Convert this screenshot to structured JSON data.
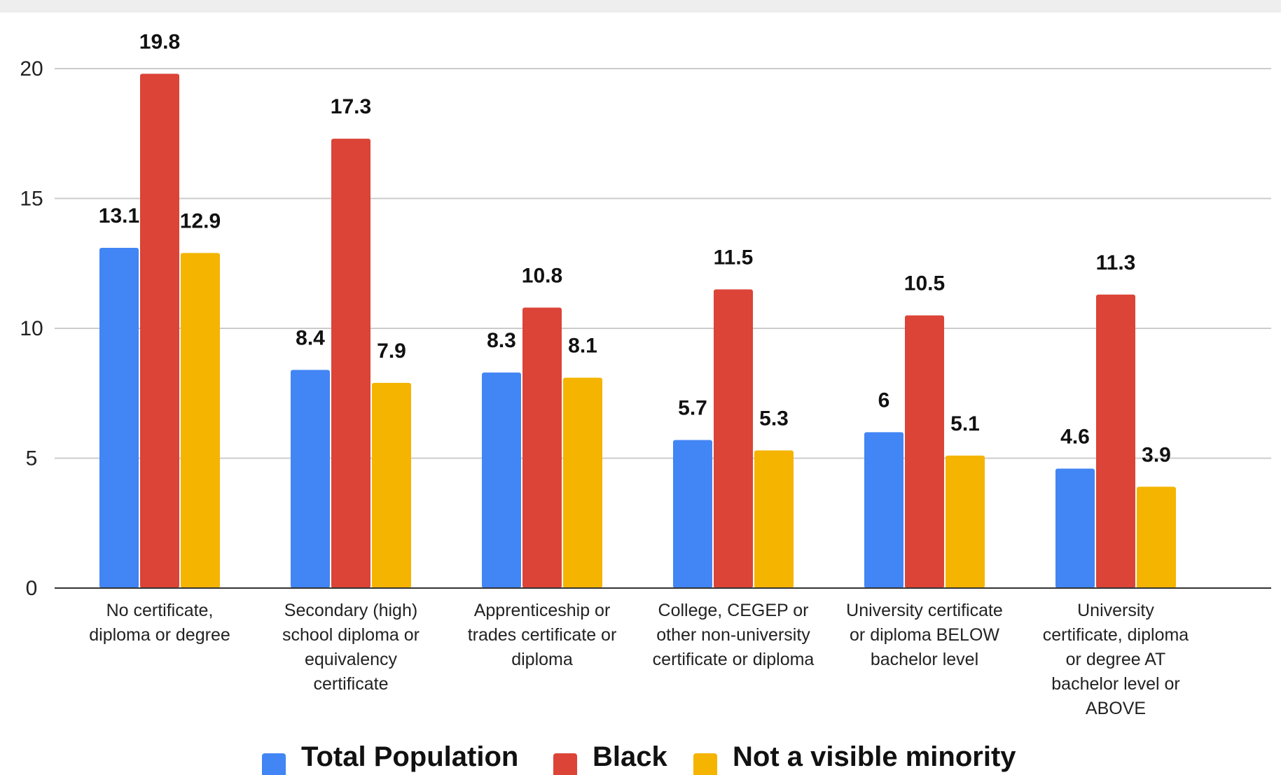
{
  "chart_data": {
    "type": "bar",
    "categories": [
      [
        "No certificate,",
        "diploma or degree"
      ],
      [
        "Secondary (high)",
        "school diploma or",
        "equivalency",
        "certificate"
      ],
      [
        "Apprenticeship or",
        "trades certificate or",
        "diploma"
      ],
      [
        "College, CEGEP or",
        "other non-university",
        "certificate or diploma"
      ],
      [
        "University certificate",
        "or diploma BELOW",
        "bachelor level"
      ],
      [
        "University",
        "certificate, diploma",
        "or degree AT",
        "bachelor level or",
        "ABOVE"
      ]
    ],
    "series": [
      {
        "name": "Total Population",
        "color": "#4285f4",
        "values": [
          13.1,
          8.4,
          8.3,
          5.7,
          6,
          4.6
        ],
        "labels": [
          "13.1",
          "8.4",
          "8.3",
          "5.7",
          "6",
          "4.6"
        ]
      },
      {
        "name": "Black",
        "color": "#db4437",
        "values": [
          19.8,
          17.3,
          10.8,
          11.5,
          10.5,
          11.3
        ],
        "labels": [
          "19.8",
          "17.3",
          "10.8",
          "11.5",
          "10.5",
          "11.3"
        ]
      },
      {
        "name": "Not a visible minority",
        "color": "#f4b400",
        "values": [
          12.9,
          7.9,
          8.1,
          5.3,
          5.1,
          3.9
        ],
        "labels": [
          "12.9",
          "7.9",
          "8.1",
          "5.3",
          "5.1",
          "3.9"
        ]
      }
    ],
    "yticks": [
      0,
      5,
      10,
      15,
      20
    ],
    "ytick_labels": [
      "0",
      "5",
      "10",
      "15",
      "20"
    ],
    "ylim": [
      0,
      21
    ],
    "grid": true,
    "legend_position": "bottom"
  }
}
